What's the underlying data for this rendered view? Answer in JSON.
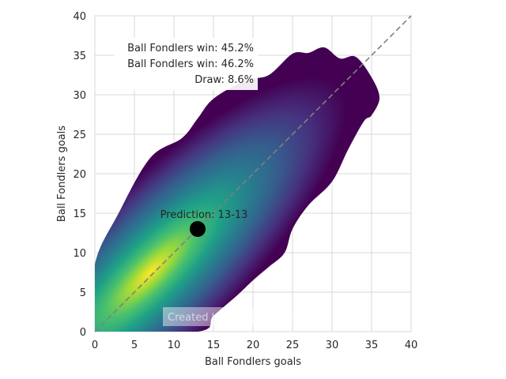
{
  "chart_data": {
    "type": "heatmap",
    "subtype": "kde-density-contour",
    "title": "",
    "xlabel": "Ball Fondlers goals",
    "ylabel": "Ball Fondlers goals",
    "xlim": [
      0,
      40
    ],
    "ylim": [
      0,
      40
    ],
    "xticks": [
      "0",
      "5",
      "10",
      "15",
      "20",
      "25",
      "30",
      "35",
      "40"
    ],
    "yticks": [
      "0",
      "5",
      "10",
      "15",
      "20",
      "25",
      "30",
      "35",
      "40"
    ],
    "grid": true,
    "colormap": "viridis",
    "density_peak": {
      "x": 7,
      "y": 7.5
    },
    "density_outline": [
      [
        0,
        0
      ],
      [
        0,
        8.5
      ],
      [
        3,
        15
      ],
      [
        7,
        22
      ],
      [
        11,
        24.5
      ],
      [
        13,
        27
      ],
      [
        15,
        29.5
      ],
      [
        19,
        31.8
      ],
      [
        22,
        32.5
      ],
      [
        25,
        35.2
      ],
      [
        27,
        35.3
      ],
      [
        29,
        36
      ],
      [
        31,
        34.6
      ],
      [
        33,
        34.8
      ],
      [
        35,
        32.2
      ],
      [
        36,
        29.6
      ],
      [
        35,
        27.4
      ],
      [
        34,
        26.6
      ],
      [
        32,
        23
      ],
      [
        30,
        19
      ],
      [
        27,
        16
      ],
      [
        25,
        13
      ],
      [
        24,
        10
      ],
      [
        22,
        8.2
      ],
      [
        20,
        6.5
      ],
      [
        18,
        4.6
      ],
      [
        15,
        2
      ],
      [
        13,
        0
      ]
    ],
    "diagonal": {
      "from": [
        0,
        0
      ],
      "to": [
        40,
        40
      ],
      "style": "dashed"
    },
    "prediction_point": {
      "x": 13,
      "y": 13,
      "label": "Prediction: 13-13"
    },
    "annotations": [
      "Ball Fondlers win: 45.2%",
      "Ball Fondlers win: 46.2%",
      "Draw: 8.6%"
    ],
    "watermark": "Created by Michael Nefiodovas"
  },
  "colors": {
    "grid": "#d9d9d9",
    "diagonal": "#808080",
    "point": "#000000",
    "viridis": [
      "#440154",
      "#46327e",
      "#365c8d",
      "#277f8e",
      "#1fa187",
      "#4ac16d",
      "#a0da39",
      "#fde725"
    ]
  }
}
